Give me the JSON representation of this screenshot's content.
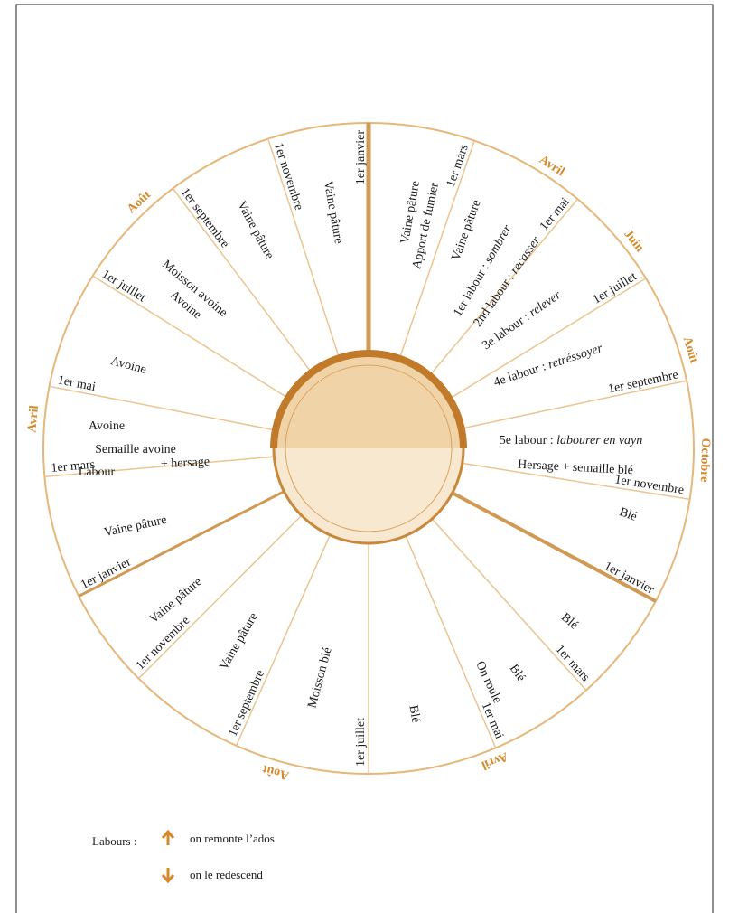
{
  "spokes": [
    "1er janvier",
    "1er mars",
    "1er mai",
    "1er juillet",
    "1er septembre",
    "1er novembre",
    "1er janvier",
    "1er mars",
    "1er mai",
    "1er juillet",
    "1er septembre",
    "1er novembre",
    "1er janvier",
    "1er mars",
    "1er mai",
    "1er juillet",
    "1er septembre",
    "1er novembre"
  ],
  "months": [
    "Avril",
    "Juin",
    "Août",
    "Octobre",
    "Avril",
    "Août",
    "Avril",
    "Août"
  ],
  "sectors": [
    {
      "text": "Vaine pâture"
    },
    {
      "text": "Vaine pâture"
    },
    {
      "text": "Apport de fumier"
    },
    {
      "text": "Vaine pâture"
    },
    {
      "text": "1er labour : ",
      "term": "sombrer"
    },
    {
      "text": "2nd labour : ",
      "term": "recasser"
    },
    {
      "text": "3e labour : ",
      "term": "relever"
    },
    {
      "text": "4e labour : ",
      "term": "retréssoyer"
    },
    {
      "text": "5e labour : ",
      "term": "labourer en vayn"
    },
    {
      "text": "Hersage + semaille blé"
    },
    {
      "text": "Blé"
    },
    {
      "text": "Blé"
    },
    {
      "text": "Blé"
    },
    {
      "text": "On roule"
    },
    {
      "text": "Blé"
    },
    {
      "text": "Moisson blé"
    },
    {
      "text": "Vaine pâture"
    },
    {
      "text": "Vaine pâture"
    },
    {
      "text": "Vaine pâture"
    },
    {
      "text": "Avoine"
    },
    {
      "text": "Semaille avoine"
    },
    {
      "text": "Labour"
    },
    {
      "text": "+ hersage"
    },
    {
      "text": "Avoine"
    },
    {
      "text": "Moisson avoine"
    },
    {
      "text": "Avoine"
    },
    {
      "text": "Vaine pâture"
    }
  ],
  "legend": {
    "title": "Labours :",
    "up": "on remonte l’ados",
    "down": "on le redescend"
  }
}
